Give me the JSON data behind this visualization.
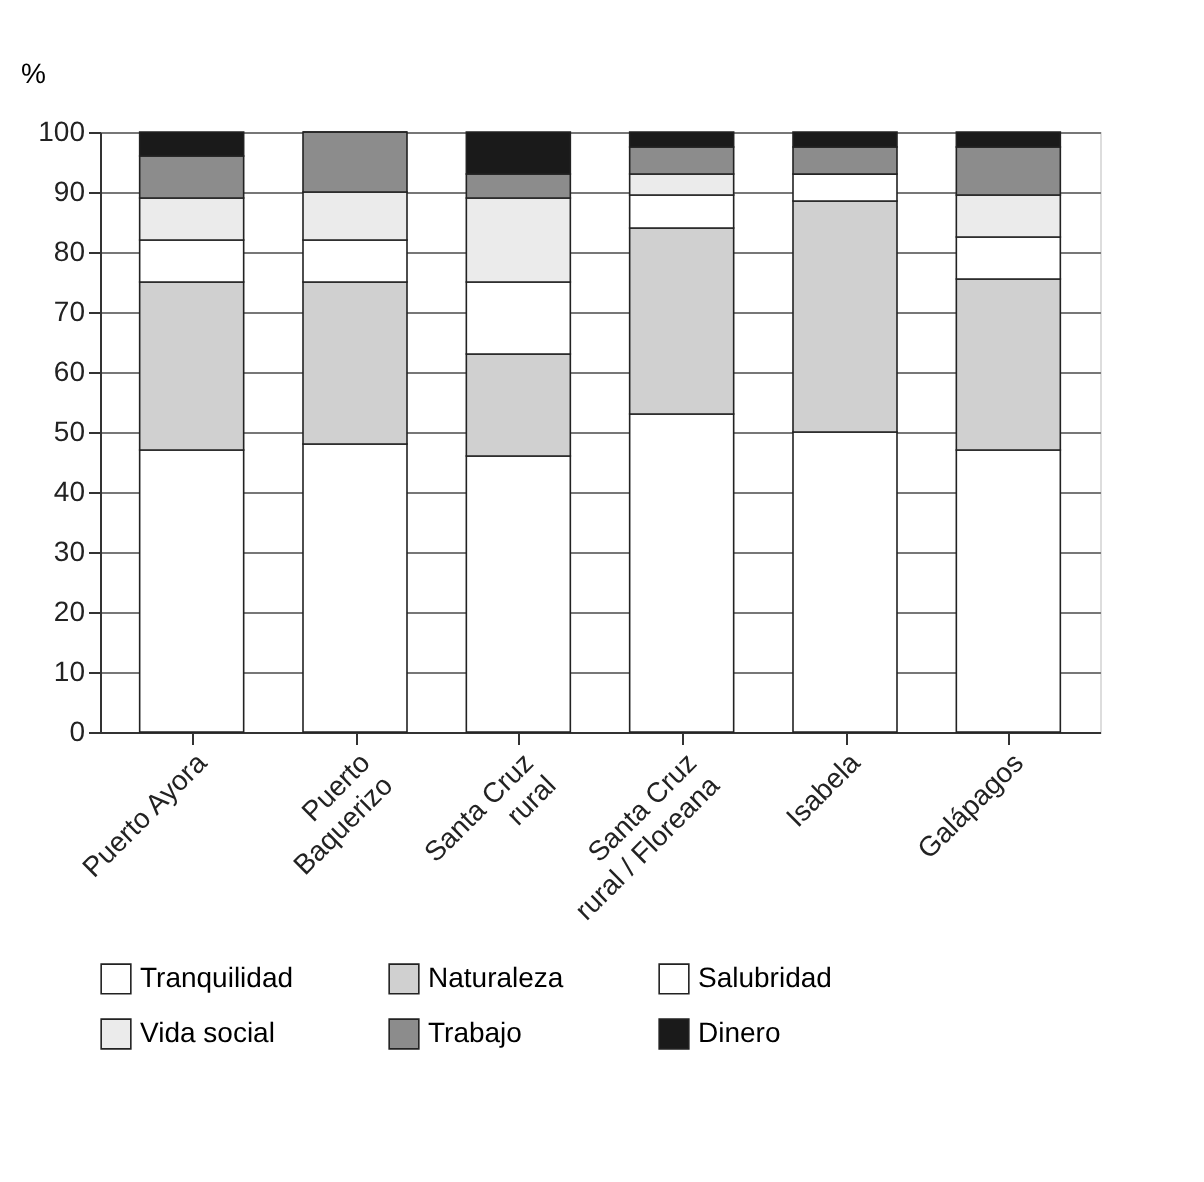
{
  "chart_data": {
    "type": "bar",
    "stacked": true,
    "ylabel": "%",
    "categories": [
      "Puerto Ayora",
      "Puerto\nBaquerizo",
      "Santa Cruz\nrural",
      "Santa Cruz\nrural / Floreana",
      "Isabela",
      "Galápagos"
    ],
    "series": [
      {
        "name": "Tranquilidad",
        "color": "#ffffff",
        "values": [
          47,
          48,
          46,
          53,
          50,
          47
        ]
      },
      {
        "name": "Naturaleza",
        "color": "#d0d0d0",
        "values": [
          28,
          27,
          17,
          31,
          38.5,
          28.5
        ]
      },
      {
        "name": "Salubridad",
        "color": "#ffffff",
        "values": [
          7,
          7,
          12,
          5.5,
          4.5,
          7
        ]
      },
      {
        "name": "Vida social",
        "color": "#ebebeb",
        "values": [
          7,
          8,
          14,
          3.5,
          0,
          7
        ]
      },
      {
        "name": "Trabajo",
        "color": "#8c8c8c",
        "values": [
          7,
          10,
          4,
          4.5,
          4.5,
          8
        ]
      },
      {
        "name": "Dinero",
        "color": "#1a1a1a",
        "values": [
          4,
          0,
          7,
          2.5,
          2.5,
          2.5
        ]
      }
    ],
    "ylim": [
      0,
      100
    ],
    "yticks": [
      0,
      10,
      20,
      30,
      40,
      50,
      60,
      70,
      80,
      90,
      100
    ],
    "grid": "y",
    "legend": "bottom"
  }
}
